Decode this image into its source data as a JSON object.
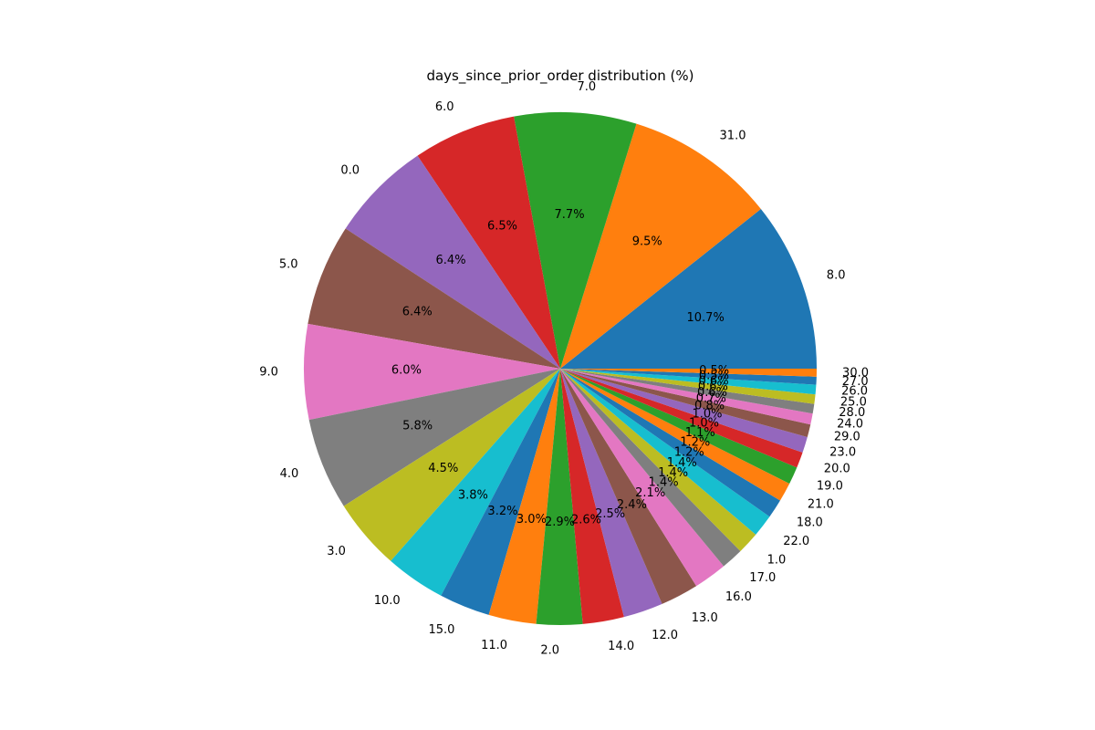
{
  "chart_data": {
    "type": "pie",
    "title": "days_since_prior_order distribution (%)",
    "start_angle_deg": 0,
    "direction": "counterclockwise",
    "label_format": "{pct:.1f}%",
    "slices": [
      {
        "label": "8.0",
        "value": 10.7,
        "color": "#1f77b4"
      },
      {
        "label": "31.0",
        "value": 9.5,
        "color": "#ff7f0e"
      },
      {
        "label": "7.0",
        "value": 7.7,
        "color": "#2ca02c"
      },
      {
        "label": "6.0",
        "value": 6.5,
        "color": "#d62728"
      },
      {
        "label": "0.0",
        "value": 6.4,
        "color": "#9467bd"
      },
      {
        "label": "5.0",
        "value": 6.4,
        "color": "#8c564b"
      },
      {
        "label": "9.0",
        "value": 6.0,
        "color": "#e377c2"
      },
      {
        "label": "4.0",
        "value": 5.8,
        "color": "#7f7f7f"
      },
      {
        "label": "3.0",
        "value": 4.5,
        "color": "#bcbd22"
      },
      {
        "label": "10.0",
        "value": 3.8,
        "color": "#17becf"
      },
      {
        "label": "15.0",
        "value": 3.2,
        "color": "#1f77b4"
      },
      {
        "label": "11.0",
        "value": 3.0,
        "color": "#ff7f0e"
      },
      {
        "label": "2.0",
        "value": 2.9,
        "color": "#2ca02c"
      },
      {
        "label": "14.0",
        "value": 2.6,
        "color": "#d62728"
      },
      {
        "label": "12.0",
        "value": 2.5,
        "color": "#9467bd"
      },
      {
        "label": "13.0",
        "value": 2.4,
        "color": "#8c564b"
      },
      {
        "label": "16.0",
        "value": 2.1,
        "color": "#e377c2"
      },
      {
        "label": "17.0",
        "value": 1.4,
        "color": "#7f7f7f"
      },
      {
        "label": "1.0",
        "value": 1.4,
        "color": "#bcbd22"
      },
      {
        "label": "22.0",
        "value": 1.4,
        "color": "#17becf"
      },
      {
        "label": "18.0",
        "value": 1.2,
        "color": "#1f77b4"
      },
      {
        "label": "21.0",
        "value": 1.2,
        "color": "#ff7f0e"
      },
      {
        "label": "19.0",
        "value": 1.1,
        "color": "#2ca02c"
      },
      {
        "label": "20.0",
        "value": 1.0,
        "color": "#d62728"
      },
      {
        "label": "23.0",
        "value": 1.0,
        "color": "#9467bd"
      },
      {
        "label": "29.0",
        "value": 0.8,
        "color": "#8c564b"
      },
      {
        "label": "24.0",
        "value": 0.7,
        "color": "#e377c2"
      },
      {
        "label": "28.0",
        "value": 0.6,
        "color": "#7f7f7f"
      },
      {
        "label": "25.0",
        "value": 0.6,
        "color": "#bcbd22"
      },
      {
        "label": "26.0",
        "value": 0.6,
        "color": "#17becf"
      },
      {
        "label": "27.0",
        "value": 0.5,
        "color": "#1f77b4"
      },
      {
        "label": "30.0",
        "value": 0.5,
        "color": "#ff7f0e"
      }
    ]
  }
}
